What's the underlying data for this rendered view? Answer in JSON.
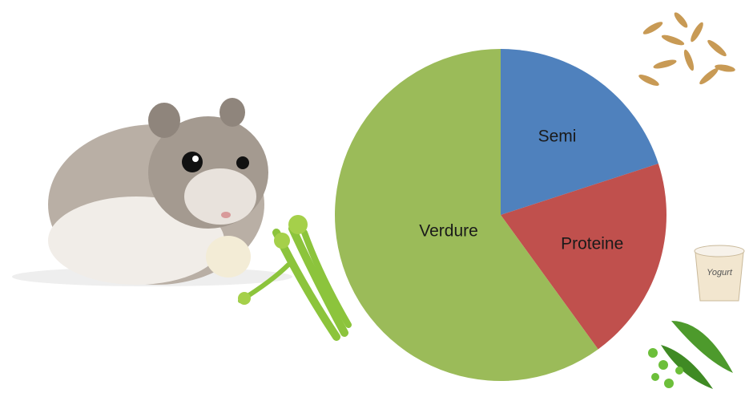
{
  "chart_data": {
    "type": "pie",
    "categories": [
      "Semi",
      "Proteine",
      "Verdure"
    ],
    "values": [
      20,
      20,
      60
    ],
    "colors": [
      "#4f81bd",
      "#c0504d",
      "#9bbb59"
    ],
    "start_angle": 0,
    "direction": "clockwise"
  },
  "decorations": {
    "yogurt_label": "Yogurt"
  }
}
